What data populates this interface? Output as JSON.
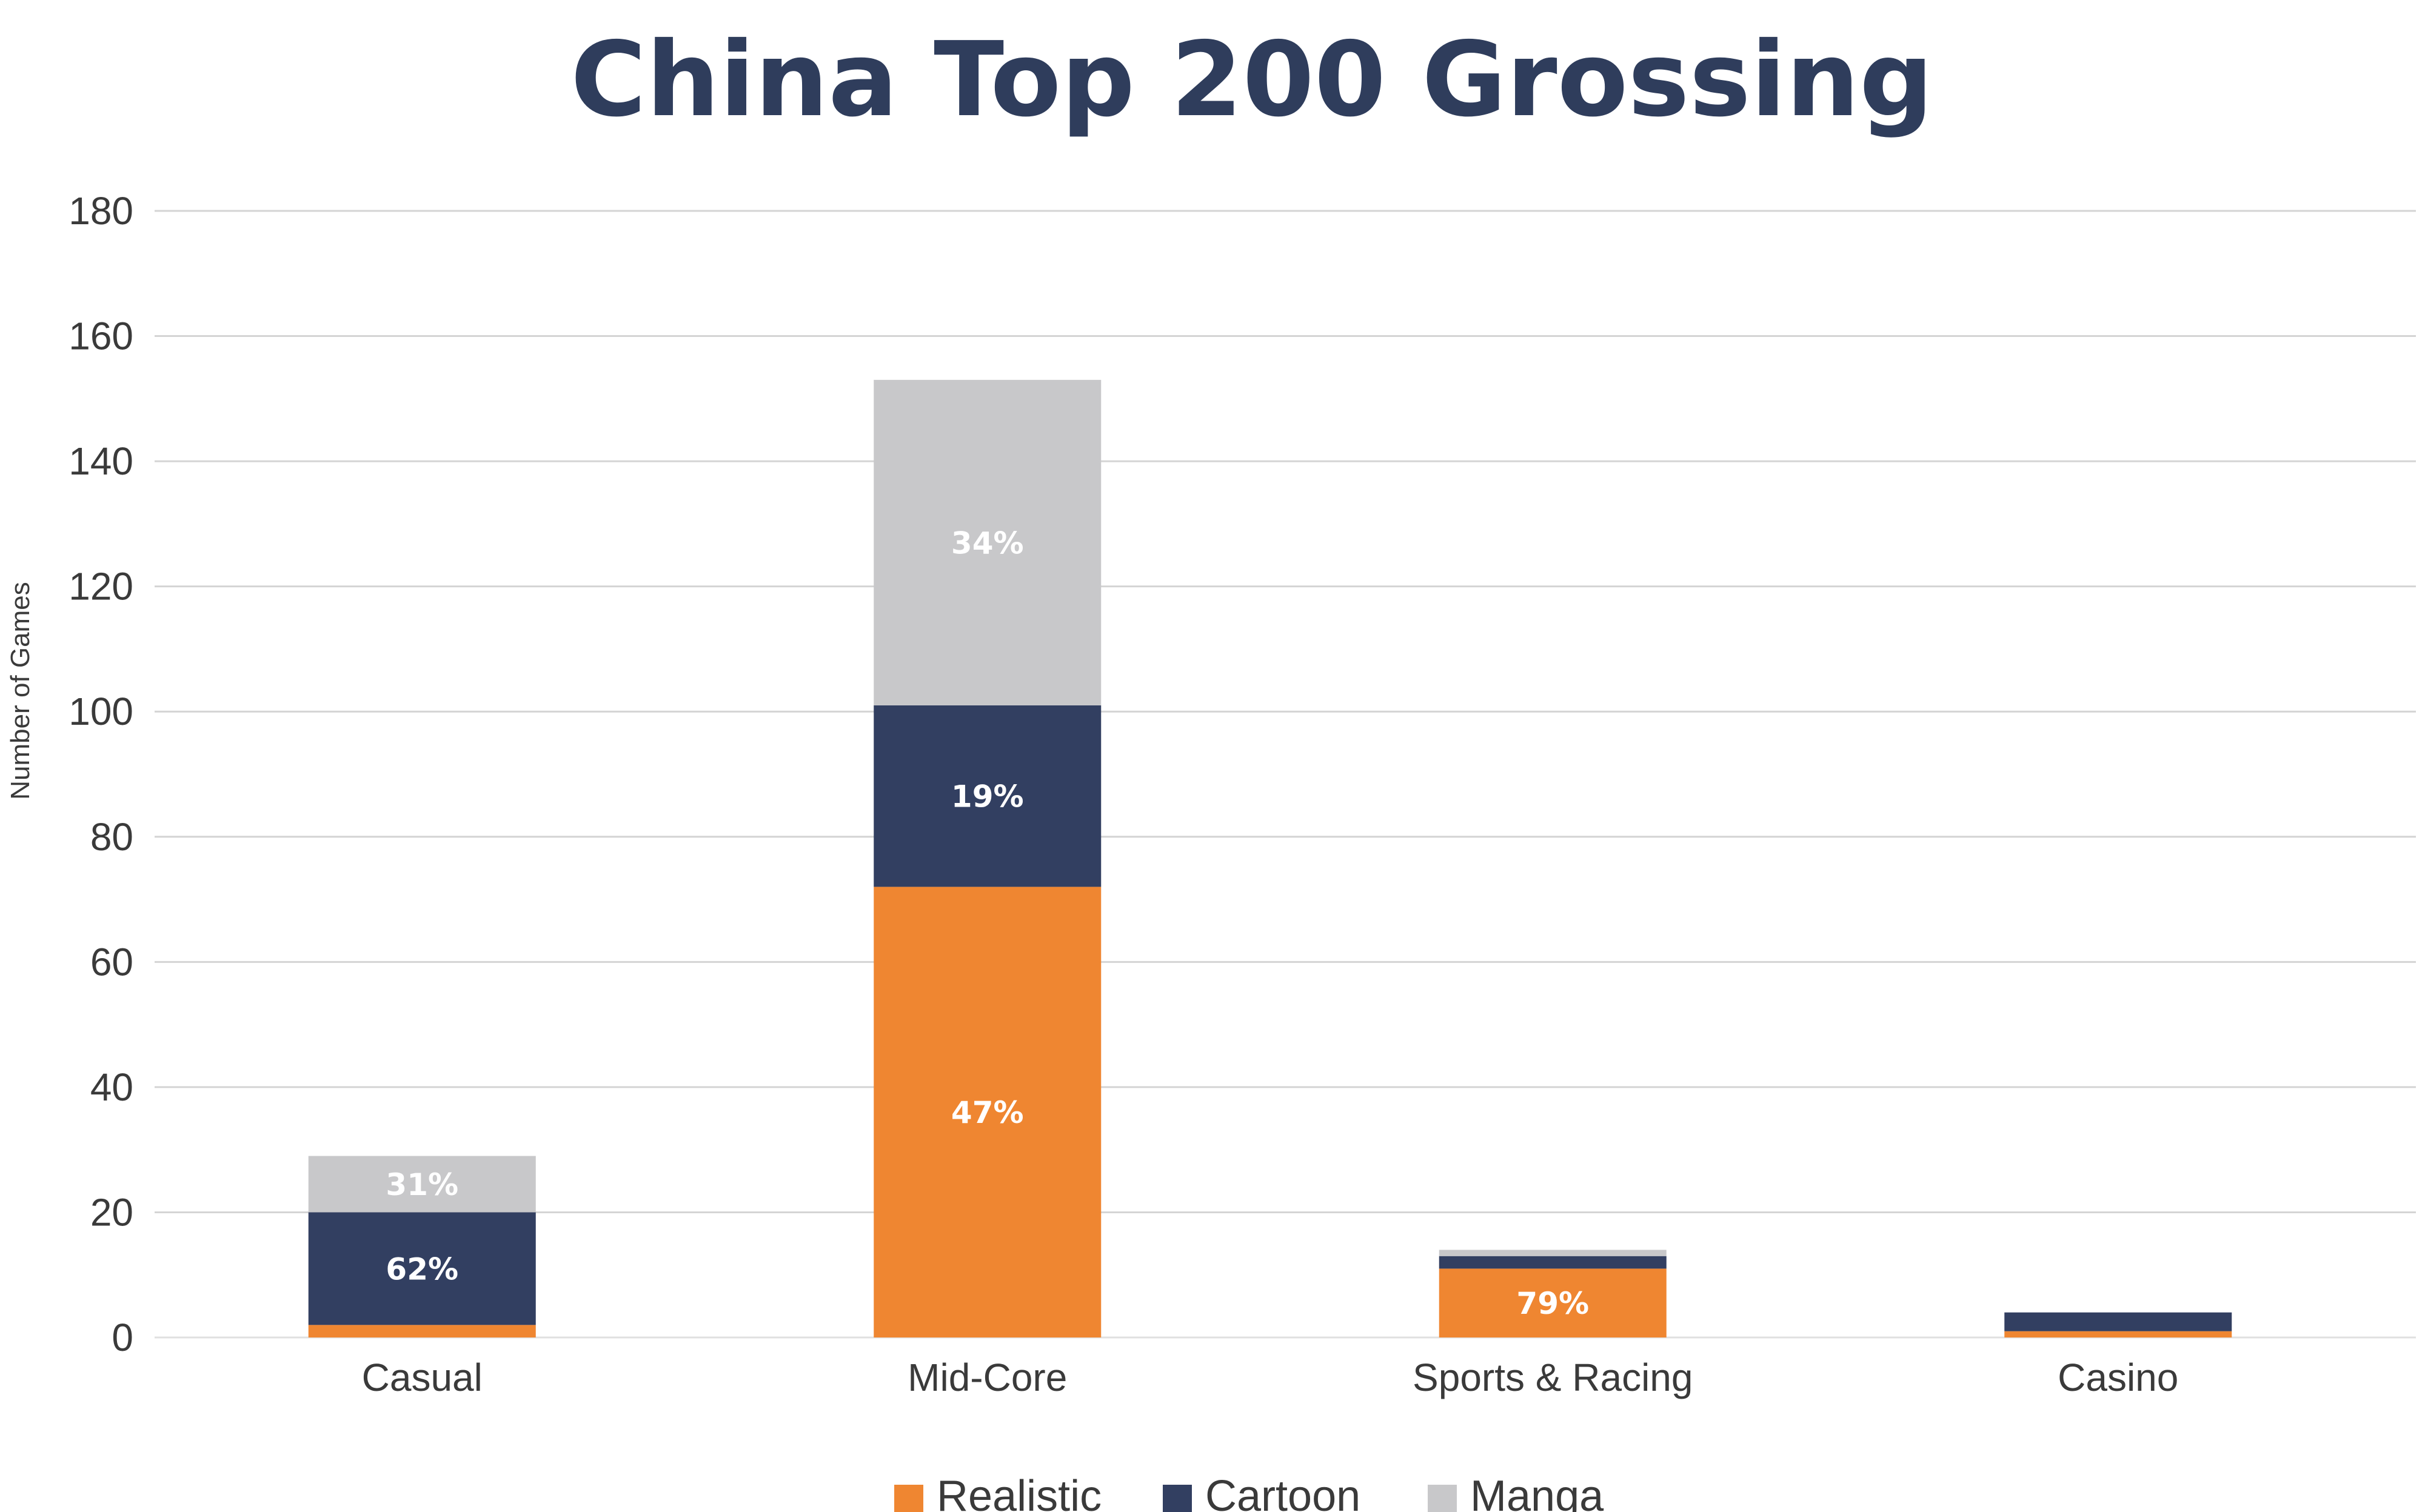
{
  "chart_data": {
    "type": "bar",
    "stacked": true,
    "title": "China Top 200 Grossing",
    "ylabel": "Number of Games",
    "xlabel": "",
    "ylim": [
      0,
      180
    ],
    "yticks": [
      0,
      20,
      40,
      60,
      80,
      100,
      120,
      140,
      160,
      180
    ],
    "grid": true,
    "legend_position": "bottom-center",
    "categories": [
      "Casual",
      "Mid-Core",
      "Sports & Racing",
      "Casino"
    ],
    "series": [
      {
        "name": "Realistic",
        "color": "#ef8631",
        "values": [
          2,
          72,
          11,
          1
        ],
        "labels": [
          "",
          "47%",
          "79%",
          ""
        ]
      },
      {
        "name": "Cartoon",
        "color": "#323f61",
        "values": [
          18,
          29,
          2,
          3
        ],
        "labels": [
          "62%",
          "19%",
          "",
          ""
        ]
      },
      {
        "name": "Manga",
        "color": "#c8c8ca",
        "values": [
          9,
          52,
          1,
          0
        ],
        "labels": [
          "31%",
          "34%",
          "",
          ""
        ]
      }
    ]
  }
}
